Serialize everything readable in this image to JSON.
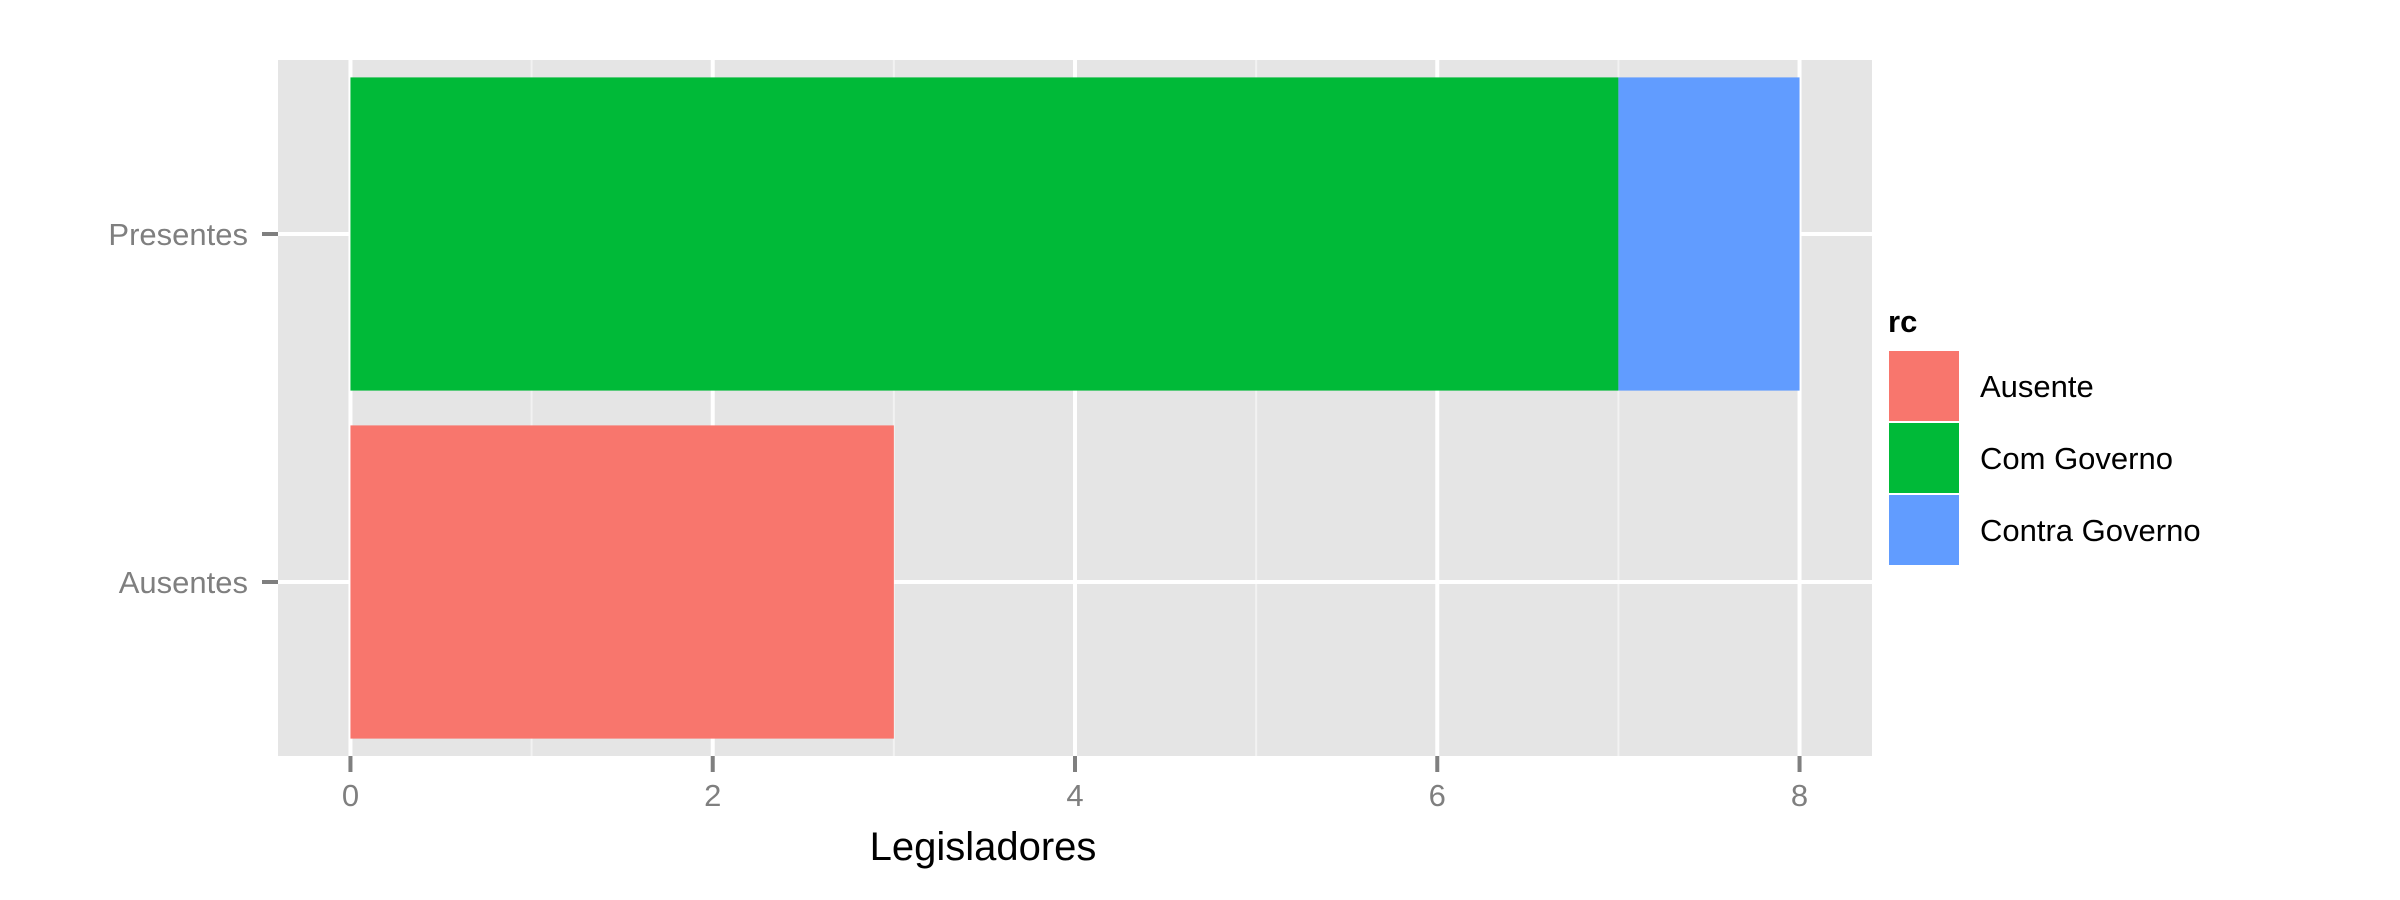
{
  "chart_data": {
    "type": "bar",
    "orientation": "horizontal",
    "stacked": true,
    "categories": [
      "Ausentes",
      "Presentes"
    ],
    "series": [
      {
        "name": "Ausente",
        "color": "#F8766D",
        "values": [
          3,
          0
        ]
      },
      {
        "name": "Com Governo",
        "color": "#00BA38",
        "values": [
          0,
          7
        ]
      },
      {
        "name": "Contra Governo",
        "color": "#619CFF",
        "values": [
          0,
          1
        ]
      }
    ],
    "xlabel": "Legisladores",
    "ylabel": "",
    "xlim": [
      -0.4,
      8.4
    ],
    "xticks": [
      0,
      2,
      4,
      6,
      8
    ],
    "xtick_labels": [
      "0",
      "2",
      "4",
      "6",
      "8"
    ],
    "grid": true,
    "legend": {
      "title": "rc",
      "position": "right"
    }
  }
}
